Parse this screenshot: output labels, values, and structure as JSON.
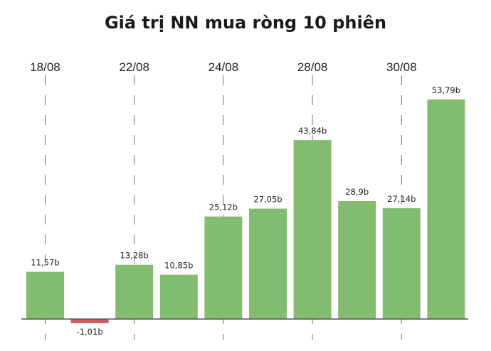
{
  "chart_data": {
    "type": "bar",
    "title": "Giá trị NN mua ròng 10 phiên",
    "categories": [
      "18/08",
      "",
      "22/08",
      "",
      "24/08",
      "",
      "28/08",
      "",
      "30/08",
      ""
    ],
    "values": [
      11.57,
      -1.01,
      13.28,
      10.85,
      25.12,
      27.05,
      43.84,
      28.9,
      27.14,
      53.79
    ],
    "value_labels": [
      "11,57b",
      "-1,01b",
      "13,28b",
      "10,85b",
      "25,12b",
      "27,05b",
      "43,84b",
      "28,9b",
      "27,14b",
      "53,79b"
    ],
    "tick_labels": [
      "18/08",
      "22/08",
      "24/08",
      "28/08",
      "30/08"
    ],
    "colors": {
      "positive": "#82bc6f",
      "negative": "#d4585f",
      "baseline": "#555555",
      "gridline": "#777777"
    },
    "grid": "dashed vertical lines at labeled categories",
    "legend": "none"
  }
}
